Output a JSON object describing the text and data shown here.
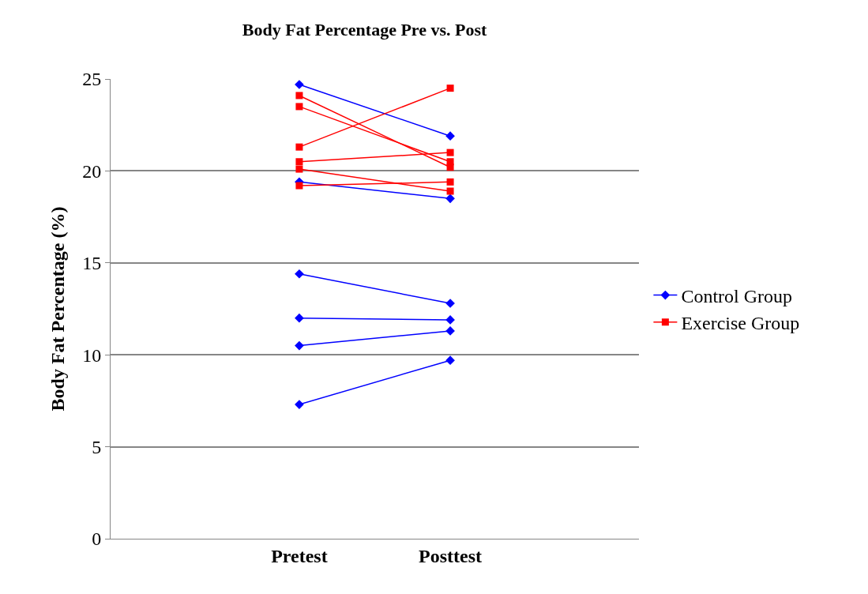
{
  "chart_data": {
    "type": "line",
    "title": "Body Fat Percentage Pre vs. Post",
    "ylabel": "Body Fat Percentage (%)",
    "categories": [
      "Pretest",
      "Posttest"
    ],
    "ylim": [
      0,
      25
    ],
    "yticks": [
      0,
      5,
      10,
      15,
      20,
      25
    ],
    "grid": "y",
    "legend": "right",
    "series": [
      {
        "name": "Control Group",
        "color": "#0000ff",
        "marker": "diamond",
        "values": [
          24.7,
          21.9
        ]
      },
      {
        "color": "#0000ff",
        "marker": "diamond",
        "values": [
          19.4,
          18.5
        ]
      },
      {
        "color": "#0000ff",
        "marker": "diamond",
        "values": [
          14.4,
          12.8
        ]
      },
      {
        "color": "#0000ff",
        "marker": "diamond",
        "values": [
          12.0,
          11.9
        ]
      },
      {
        "color": "#0000ff",
        "marker": "diamond",
        "values": [
          10.5,
          11.3
        ]
      },
      {
        "color": "#0000ff",
        "marker": "diamond",
        "values": [
          7.3,
          9.7
        ]
      },
      {
        "name": "Exercise Group",
        "color": "#ff0000",
        "marker": "square",
        "values": [
          24.1,
          20.2
        ]
      },
      {
        "color": "#ff0000",
        "marker": "square",
        "values": [
          23.5,
          20.5
        ]
      },
      {
        "color": "#ff0000",
        "marker": "square",
        "values": [
          21.3,
          24.5
        ]
      },
      {
        "color": "#ff0000",
        "marker": "square",
        "values": [
          20.5,
          21.0
        ]
      },
      {
        "color": "#ff0000",
        "marker": "square",
        "values": [
          20.1,
          18.9
        ]
      },
      {
        "color": "#ff0000",
        "marker": "square",
        "values": [
          19.2,
          19.4
        ]
      }
    ]
  }
}
